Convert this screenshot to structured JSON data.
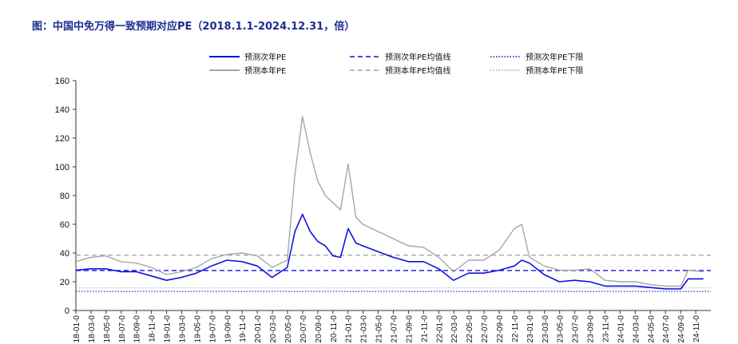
{
  "title": "图：中国中免万得一致预期对应PE（2018.1.1-2024.12.31，倍）",
  "chart_data": {
    "type": "line",
    "title": "图：中国中免万得一致预期对应PE（2018.1.1-2024.12.31，倍）",
    "ylim": [
      0,
      160
    ],
    "yticks": [
      0,
      20,
      40,
      60,
      80,
      100,
      120,
      140,
      160
    ],
    "xlabels": [
      "18-01-0",
      "18-03-0",
      "18-05-0",
      "18-07-0",
      "18-09-0",
      "18-11-0",
      "19-01-0",
      "19-03-0",
      "19-05-0",
      "19-07-0",
      "19-09-0",
      "19-11-0",
      "20-01-0",
      "20-03-0",
      "20-05-0",
      "20-07-0",
      "20-09-0",
      "20-11-0",
      "21-01-0",
      "21-03-0",
      "21-05-0",
      "21-07-0",
      "21-09-0",
      "21-11-0",
      "22-01-0",
      "22-03-0",
      "22-05-0",
      "22-07-0",
      "22-09-0",
      "22-11-0",
      "23-01-0",
      "23-03-0",
      "23-05-0",
      "23-07-0",
      "23-09-0",
      "23-11-0",
      "24-01-0",
      "24-03-0",
      "24-05-0",
      "24-07-0",
      "24-09-0",
      "24-11-0"
    ],
    "x": [
      "2018-01",
      "2018-03",
      "2018-05",
      "2018-07",
      "2018-09",
      "2018-11",
      "2019-01",
      "2019-03",
      "2019-05",
      "2019-07",
      "2019-09",
      "2019-11",
      "2020-01",
      "2020-03",
      "2020-05",
      "2020-06",
      "2020-07",
      "2020-08",
      "2020-09",
      "2020-10",
      "2020-11",
      "2020-12",
      "2021-01",
      "2021-02",
      "2021-03",
      "2021-05",
      "2021-07",
      "2021-09",
      "2021-11",
      "2022-01",
      "2022-03",
      "2022-05",
      "2022-07",
      "2022-09",
      "2022-11",
      "2022-12",
      "2023-01",
      "2023-03",
      "2023-05",
      "2023-07",
      "2023-09",
      "2023-11",
      "2024-01",
      "2024-03",
      "2024-05",
      "2024-07",
      "2024-09",
      "2024-10",
      "2024-12"
    ],
    "series": [
      {
        "name": "预测次年PE",
        "color": "#1010e0",
        "style": "solid",
        "values": [
          28,
          29,
          29,
          27,
          27,
          24,
          21,
          23,
          26,
          31,
          35,
          34,
          31,
          23,
          30,
          55,
          67,
          55,
          48,
          45,
          38,
          37,
          57,
          47,
          45,
          41,
          37,
          34,
          34,
          29,
          21,
          26,
          26,
          28,
          31,
          35,
          33,
          25,
          20,
          21,
          20,
          17,
          17,
          17,
          16,
          15,
          15,
          22,
          22
        ]
      },
      {
        "name": "预测本年PE",
        "color": "#a6a6a6",
        "style": "solid",
        "values": [
          34,
          37,
          38,
          34,
          33,
          30,
          25,
          27,
          30,
          36,
          39,
          40,
          38,
          30,
          35,
          95,
          135,
          110,
          90,
          80,
          75,
          70,
          102,
          65,
          60,
          55,
          50,
          45,
          44,
          37,
          27,
          35,
          35,
          42,
          57,
          60,
          37,
          31,
          28,
          28,
          29,
          21,
          20,
          20,
          18,
          17,
          17,
          28,
          27
        ]
      },
      {
        "name": "预测次年PE均值线",
        "color": "#1010e0",
        "style": "dashed",
        "constant": 27.8
      },
      {
        "name": "预测本年PE均值线",
        "color": "#a6a6a6",
        "style": "dashed",
        "constant": 38.5
      },
      {
        "name": "预测次年PE下限",
        "color": "#1010e0",
        "style": "dotted",
        "constant": 13.3
      },
      {
        "name": "预测本年PE下限",
        "color": "#a6a6a6",
        "style": "dotted",
        "constant": 15.7
      }
    ],
    "legend": [
      "预测次年PE",
      "预测次年PE均值线",
      "预测次年PE下限",
      "预测本年PE",
      "预测本年PE均值线",
      "预测本年PE下限"
    ],
    "legend_position": "top",
    "grid": false
  }
}
